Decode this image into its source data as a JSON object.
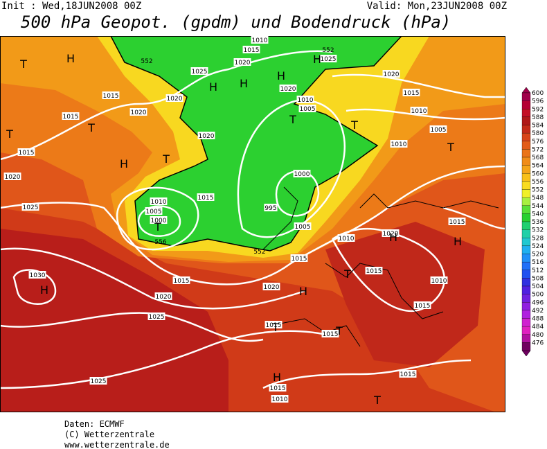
{
  "header": {
    "init": "Init : Wed,18JUN2008 00Z",
    "valid": "Valid: Mon,23JUN2008 00Z",
    "title": "500 hPa Geopot. (gpdm) und Bodendruck (hPa)"
  },
  "map": {
    "isobar_labels": [
      "1010",
      "1015",
      "1020",
      "1025",
      "1020",
      "1020",
      "1015",
      "1015",
      "1015",
      "1020",
      "1025",
      "1030",
      "1020",
      "1025",
      "1025",
      "1015",
      "1020",
      "1015",
      "1010",
      "1015",
      "1010",
      "1005",
      "1000",
      "1020",
      "1010",
      "1005",
      "1000",
      "995",
      "1005",
      "1020",
      "1020",
      "1015",
      "1010",
      "1005",
      "1010",
      "1015",
      "1020",
      "1015",
      "1010",
      "1015",
      "1015",
      "1015",
      "1015",
      "1015",
      "1010",
      "1025"
    ],
    "thickness_labels": [
      "552",
      "552",
      "556",
      "552"
    ],
    "pressure_centers": [
      "T",
      "H",
      "H",
      "H",
      "H",
      "H",
      "T",
      "T",
      "T",
      "T",
      "H",
      "T",
      "T",
      "H",
      "H",
      "T",
      "T",
      "T",
      "H",
      "H",
      "T",
      "H",
      "T"
    ]
  },
  "colorbar": {
    "levels": [
      600,
      596,
      592,
      588,
      584,
      580,
      576,
      572,
      568,
      564,
      560,
      556,
      552,
      548,
      544,
      540,
      536,
      532,
      528,
      524,
      520,
      516,
      512,
      508,
      504,
      500,
      496,
      492,
      488,
      484,
      480,
      476
    ],
    "colors": [
      "#a0004a",
      "#b40034",
      "#c41026",
      "#b01818",
      "#c42a18",
      "#d84418",
      "#e25c18",
      "#ea7418",
      "#f08c18",
      "#f4a418",
      "#f8c018",
      "#f8dc20",
      "#f0f028",
      "#a8f040",
      "#58e038",
      "#28d030",
      "#20d070",
      "#20d0a8",
      "#20c8d0",
      "#20b0f0",
      "#2090f8",
      "#2070f8",
      "#2050f0",
      "#3030e0",
      "#5020e0",
      "#7020e0",
      "#9020e0",
      "#b020e0",
      "#d020d0",
      "#e020c0",
      "#b010a0",
      "#700060"
    ]
  },
  "credits": [
    "Daten: ECMWF",
    "(C) Wetterzentrale",
    "www.wetterzentrale.de"
  ]
}
